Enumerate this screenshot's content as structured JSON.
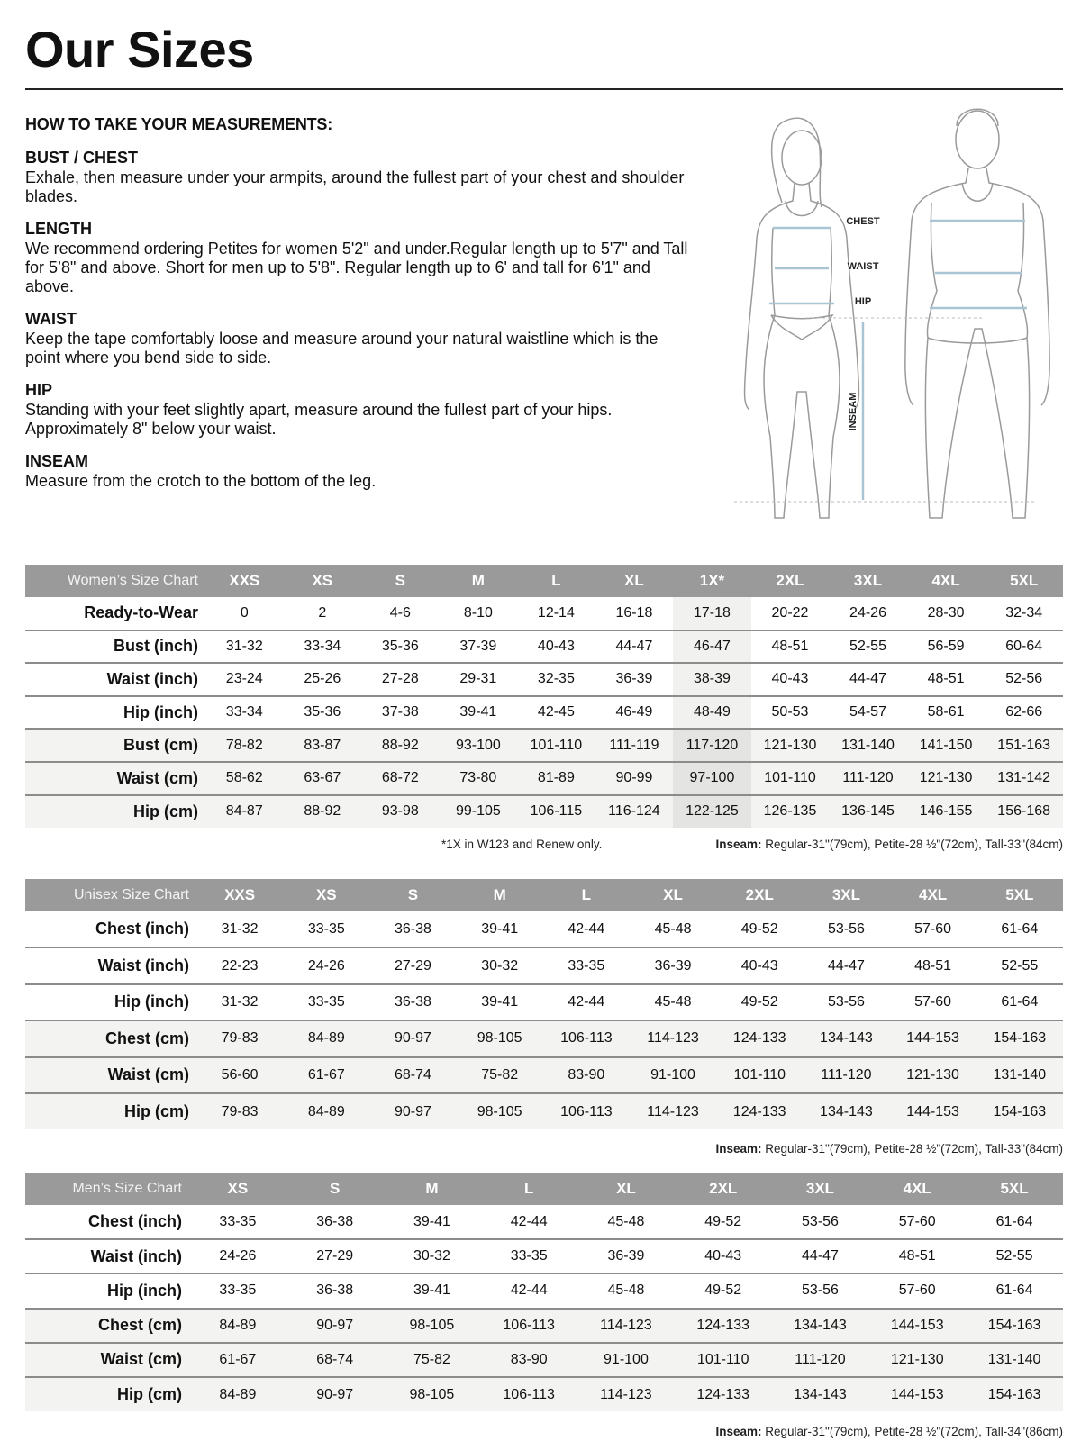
{
  "page": {
    "title": "Our Sizes"
  },
  "instructions": {
    "heading": "HOW TO TAKE YOUR MEASUREMENTS:",
    "sections": [
      {
        "title": "BUST / CHEST",
        "text": "Exhale, then measure under your armpits, around the fullest part of your chest and shoulder blades."
      },
      {
        "title": "LENGTH",
        "text": "We recommend ordering Petites for women 5'2\" and under.Regular length up to 5'7\" and Tall for 5’8\" and above. Short for men up to 5'8\". Regular length up to 6' and tall for 6'1\" and above."
      },
      {
        "title": "WAIST",
        "text": "Keep the tape comfortably loose and measure around your natural waistline which is the point where you bend side to side."
      },
      {
        "title": "HIP",
        "text": "Standing with your feet slightly apart, measure around the fullest part of your hips. Approximately 8\" below your waist."
      },
      {
        "title": "INSEAM",
        "text": "Measure from the crotch to the bottom of the leg."
      }
    ]
  },
  "figure": {
    "labels": {
      "chest": "CHEST",
      "waist": "WAIST",
      "hip": "HIP",
      "inseam": "INSEAM"
    },
    "measure_color": "#a9c4d3"
  },
  "tables": [
    {
      "title": "Women’s Size Chart",
      "sizes": [
        "XXS",
        "XS",
        "S",
        "M",
        "L",
        "XL",
        "1X*",
        "2XL",
        "3XL",
        "4XL",
        "5XL"
      ],
      "highlight_col": 6,
      "rows": [
        {
          "label": "Ready-to-Wear",
          "cm": false,
          "values": [
            "0",
            "2",
            "4-6",
            "8-10",
            "12-14",
            "16-18",
            "17-18",
            "20-22",
            "24-26",
            "28-30",
            "32-34"
          ]
        },
        {
          "label": "Bust (inch)",
          "cm": false,
          "values": [
            "31-32",
            "33-34",
            "35-36",
            "37-39",
            "40-43",
            "44-47",
            "46-47",
            "48-51",
            "52-55",
            "56-59",
            "60-64"
          ]
        },
        {
          "label": "Waist (inch)",
          "cm": false,
          "values": [
            "23-24",
            "25-26",
            "27-28",
            "29-31",
            "32-35",
            "36-39",
            "38-39",
            "40-43",
            "44-47",
            "48-51",
            "52-56"
          ]
        },
        {
          "label": "Hip (inch)",
          "cm": false,
          "values": [
            "33-34",
            "35-36",
            "37-38",
            "39-41",
            "42-45",
            "46-49",
            "48-49",
            "50-53",
            "54-57",
            "58-61",
            "62-66"
          ]
        },
        {
          "label": "Bust (cm)",
          "cm": true,
          "values": [
            "78-82",
            "83-87",
            "88-92",
            "93-100",
            "101-110",
            "111-119",
            "117-120",
            "121-130",
            "131-140",
            "141-150",
            "151-163"
          ]
        },
        {
          "label": "Waist (cm)",
          "cm": true,
          "values": [
            "58-62",
            "63-67",
            "68-72",
            "73-80",
            "81-89",
            "90-99",
            "97-100",
            "101-110",
            "111-120",
            "121-130",
            "131-142"
          ]
        },
        {
          "label": "Hip (cm)",
          "cm": true,
          "values": [
            "84-87",
            "88-92",
            "93-98",
            "99-105",
            "106-115",
            "116-124",
            "122-125",
            "126-135",
            "136-145",
            "146-155",
            "156-168"
          ]
        }
      ],
      "footnote": "*1X in W123 and Renew only.",
      "inseam_label": "Inseam:",
      "inseam_text": " Regular-31\"(79cm), Petite-28 ½\"(72cm), Tall-33\"(84cm)"
    },
    {
      "title": "Unisex Size Chart",
      "sizes": [
        "XXS",
        "XS",
        "S",
        "M",
        "L",
        "XL",
        "2XL",
        "3XL",
        "4XL",
        "5XL"
      ],
      "rows": [
        {
          "label": "Chest (inch)",
          "cm": false,
          "values": [
            "31-32",
            "33-35",
            "36-38",
            "39-41",
            "42-44",
            "45-48",
            "49-52",
            "53-56",
            "57-60",
            "61-64"
          ]
        },
        {
          "label": "Waist (inch)",
          "cm": false,
          "values": [
            "22-23",
            "24-26",
            "27-29",
            "30-32",
            "33-35",
            "36-39",
            "40-43",
            "44-47",
            "48-51",
            "52-55"
          ]
        },
        {
          "label": "Hip (inch)",
          "cm": false,
          "values": [
            "31-32",
            "33-35",
            "36-38",
            "39-41",
            "42-44",
            "45-48",
            "49-52",
            "53-56",
            "57-60",
            "61-64"
          ]
        },
        {
          "label": "Chest (cm)",
          "cm": true,
          "values": [
            "79-83",
            "84-89",
            "90-97",
            "98-105",
            "106-113",
            "114-123",
            "124-133",
            "134-143",
            "144-153",
            "154-163"
          ]
        },
        {
          "label": "Waist (cm)",
          "cm": true,
          "values": [
            "56-60",
            "61-67",
            "68-74",
            "75-82",
            "83-90",
            "91-100",
            "101-110",
            "111-120",
            "121-130",
            "131-140"
          ]
        },
        {
          "label": "Hip (cm)",
          "cm": true,
          "values": [
            "79-83",
            "84-89",
            "90-97",
            "98-105",
            "106-113",
            "114-123",
            "124-133",
            "134-143",
            "144-153",
            "154-163"
          ]
        }
      ],
      "inseam_label": "Inseam:",
      "inseam_text": " Regular-31\"(79cm), Petite-28 ½\"(72cm), Tall-33\"(84cm)"
    },
    {
      "title": "Men’s Size Chart",
      "sizes": [
        "XS",
        "S",
        "M",
        "L",
        "XL",
        "2XL",
        "3XL",
        "4XL",
        "5XL"
      ],
      "rows": [
        {
          "label": "Chest (inch)",
          "cm": false,
          "values": [
            "33-35",
            "36-38",
            "39-41",
            "42-44",
            "45-48",
            "49-52",
            "53-56",
            "57-60",
            "61-64"
          ]
        },
        {
          "label": "Waist (inch)",
          "cm": false,
          "values": [
            "24-26",
            "27-29",
            "30-32",
            "33-35",
            "36-39",
            "40-43",
            "44-47",
            "48-51",
            "52-55"
          ]
        },
        {
          "label": "Hip (inch)",
          "cm": false,
          "values": [
            "33-35",
            "36-38",
            "39-41",
            "42-44",
            "45-48",
            "49-52",
            "53-56",
            "57-60",
            "61-64"
          ]
        },
        {
          "label": "Chest (cm)",
          "cm": true,
          "values": [
            "84-89",
            "90-97",
            "98-105",
            "106-113",
            "114-123",
            "124-133",
            "134-143",
            "144-153",
            "154-163"
          ]
        },
        {
          "label": "Waist (cm)",
          "cm": true,
          "values": [
            "61-67",
            "68-74",
            "75-82",
            "83-90",
            "91-100",
            "101-110",
            "111-120",
            "121-130",
            "131-140"
          ]
        },
        {
          "label": "Hip (cm)",
          "cm": true,
          "values": [
            "84-89",
            "90-97",
            "98-105",
            "106-113",
            "114-123",
            "124-133",
            "134-143",
            "144-153",
            "154-163"
          ]
        }
      ],
      "inseam_label": "Inseam:",
      "inseam_text": " Regular-31\"(79cm), Petite-28 ½\"(72cm), Tall-34\"(86cm)"
    }
  ]
}
